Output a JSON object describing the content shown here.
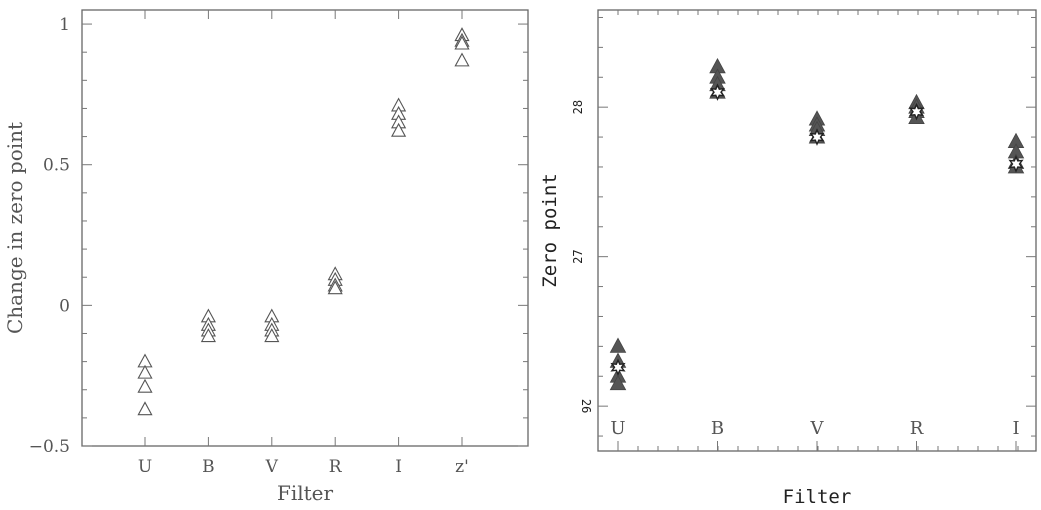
{
  "chart_data": [
    {
      "type": "scatter",
      "title": "",
      "xlabel": "Filter",
      "ylabel": "Change in zero point",
      "categories": [
        "U",
        "B",
        "V",
        "R",
        "I",
        "z'"
      ],
      "ylim": [
        -0.5,
        1.05
      ],
      "yticks": [
        -0.5,
        0,
        0.5,
        1
      ],
      "ytick_labels": [
        "−0.5",
        "0",
        "0.5",
        "1"
      ],
      "grid": false,
      "marker": "open-triangle",
      "points": [
        {
          "category": "U",
          "values": [
            -0.2,
            -0.24,
            -0.29,
            -0.37
          ]
        },
        {
          "category": "B",
          "values": [
            -0.04,
            -0.07,
            -0.09,
            -0.11
          ]
        },
        {
          "category": "V",
          "values": [
            -0.04,
            -0.07,
            -0.09,
            -0.11
          ]
        },
        {
          "category": "R",
          "values": [
            0.11,
            0.09,
            0.07,
            0.06
          ]
        },
        {
          "category": "I",
          "values": [
            0.71,
            0.68,
            0.65,
            0.62
          ]
        },
        {
          "category": "z'",
          "values": [
            0.96,
            0.94,
            0.93,
            0.87
          ]
        }
      ]
    },
    {
      "type": "scatter",
      "title": "",
      "xlabel": "Filter",
      "ylabel": "Zero point",
      "categories": [
        "U",
        "B",
        "V",
        "R",
        "I"
      ],
      "ylim": [
        25.7,
        28.65
      ],
      "yticks": [
        26,
        27,
        28
      ],
      "ytick_labels": [
        "26",
        "27",
        "28"
      ],
      "grid": false,
      "series": [
        {
          "marker": "filled-triangle",
          "points": [
            {
              "category": "U",
              "values": [
                26.4,
                26.3,
                26.2,
                26.15
              ]
            },
            {
              "category": "B",
              "values": [
                28.27,
                28.2,
                28.15,
                28.1
              ]
            },
            {
              "category": "V",
              "values": [
                27.92,
                27.88,
                27.85,
                27.8
              ]
            },
            {
              "category": "R",
              "values": [
                28.03,
                28.0,
                27.97,
                27.93
              ]
            },
            {
              "category": "I",
              "values": [
                27.77,
                27.7,
                27.63,
                27.6
              ]
            }
          ]
        },
        {
          "marker": "open-star",
          "points": [
            {
              "category": "U",
              "values": [
                26.26
              ]
            },
            {
              "category": "B",
              "values": [
                28.1
              ]
            },
            {
              "category": "V",
              "values": [
                27.8
              ]
            },
            {
              "category": "R",
              "values": [
                27.97
              ]
            },
            {
              "category": "I",
              "values": [
                27.62
              ]
            }
          ]
        }
      ]
    }
  ]
}
